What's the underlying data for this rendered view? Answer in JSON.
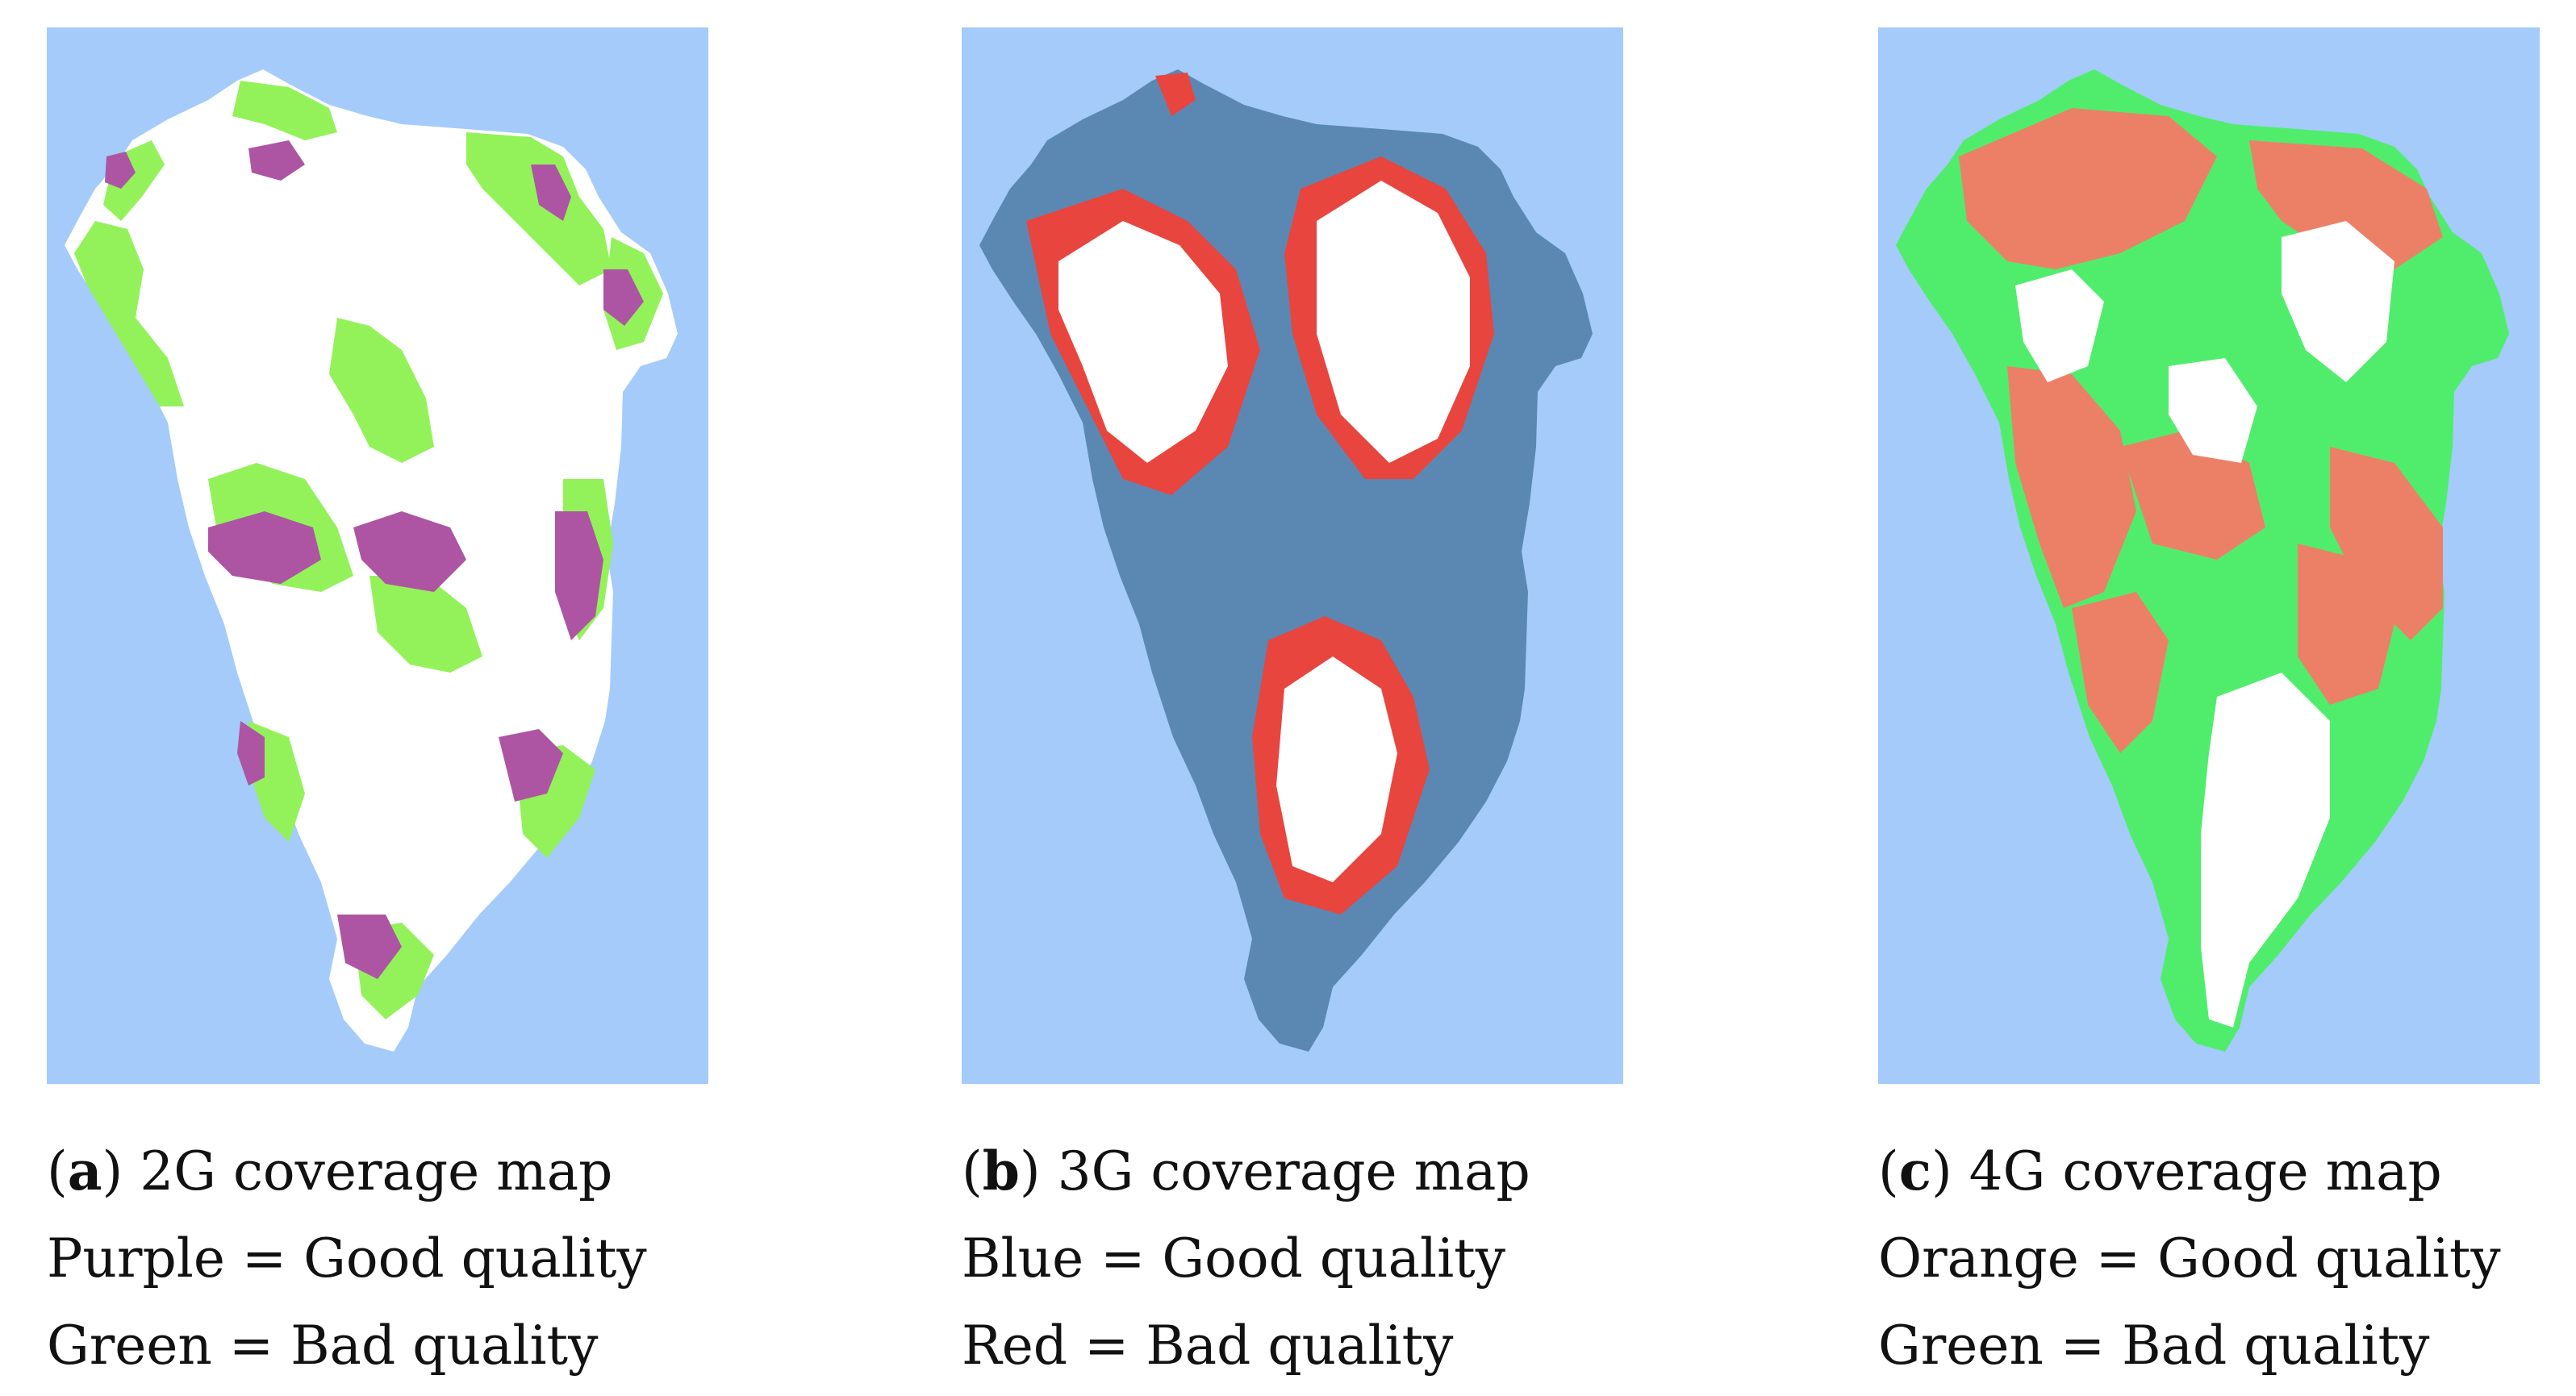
{
  "colors": {
    "sea": "#a4cbfa",
    "land_white": "#ffffff",
    "purple": "#ad55a3",
    "light_green": "#93f25a",
    "steel_blue": "#5a88b3",
    "red": "#e8453f",
    "bright_green": "#50ed6c",
    "orange": "#ec8067"
  },
  "panels": [
    {
      "id": "a",
      "letter": "a",
      "title": "2G coverage map",
      "legend": [
        {
          "text": "Purple = Good quality",
          "color": "#ad55a3"
        },
        {
          "text": "Green = Bad quality",
          "color": "#93f25a"
        }
      ]
    },
    {
      "id": "b",
      "letter": "b",
      "title": "3G coverage map",
      "legend": [
        {
          "text": "Blue = Good quality",
          "color": "#5a88b3"
        },
        {
          "text": "Red = Bad quality",
          "color": "#e8453f"
        }
      ]
    },
    {
      "id": "c",
      "letter": "c",
      "title": "4G coverage map",
      "legend": [
        {
          "text": "Orange = Good quality",
          "color": "#ec8067"
        },
        {
          "text": "Green = Bad quality",
          "color": "#50ed6c"
        }
      ]
    }
  ]
}
